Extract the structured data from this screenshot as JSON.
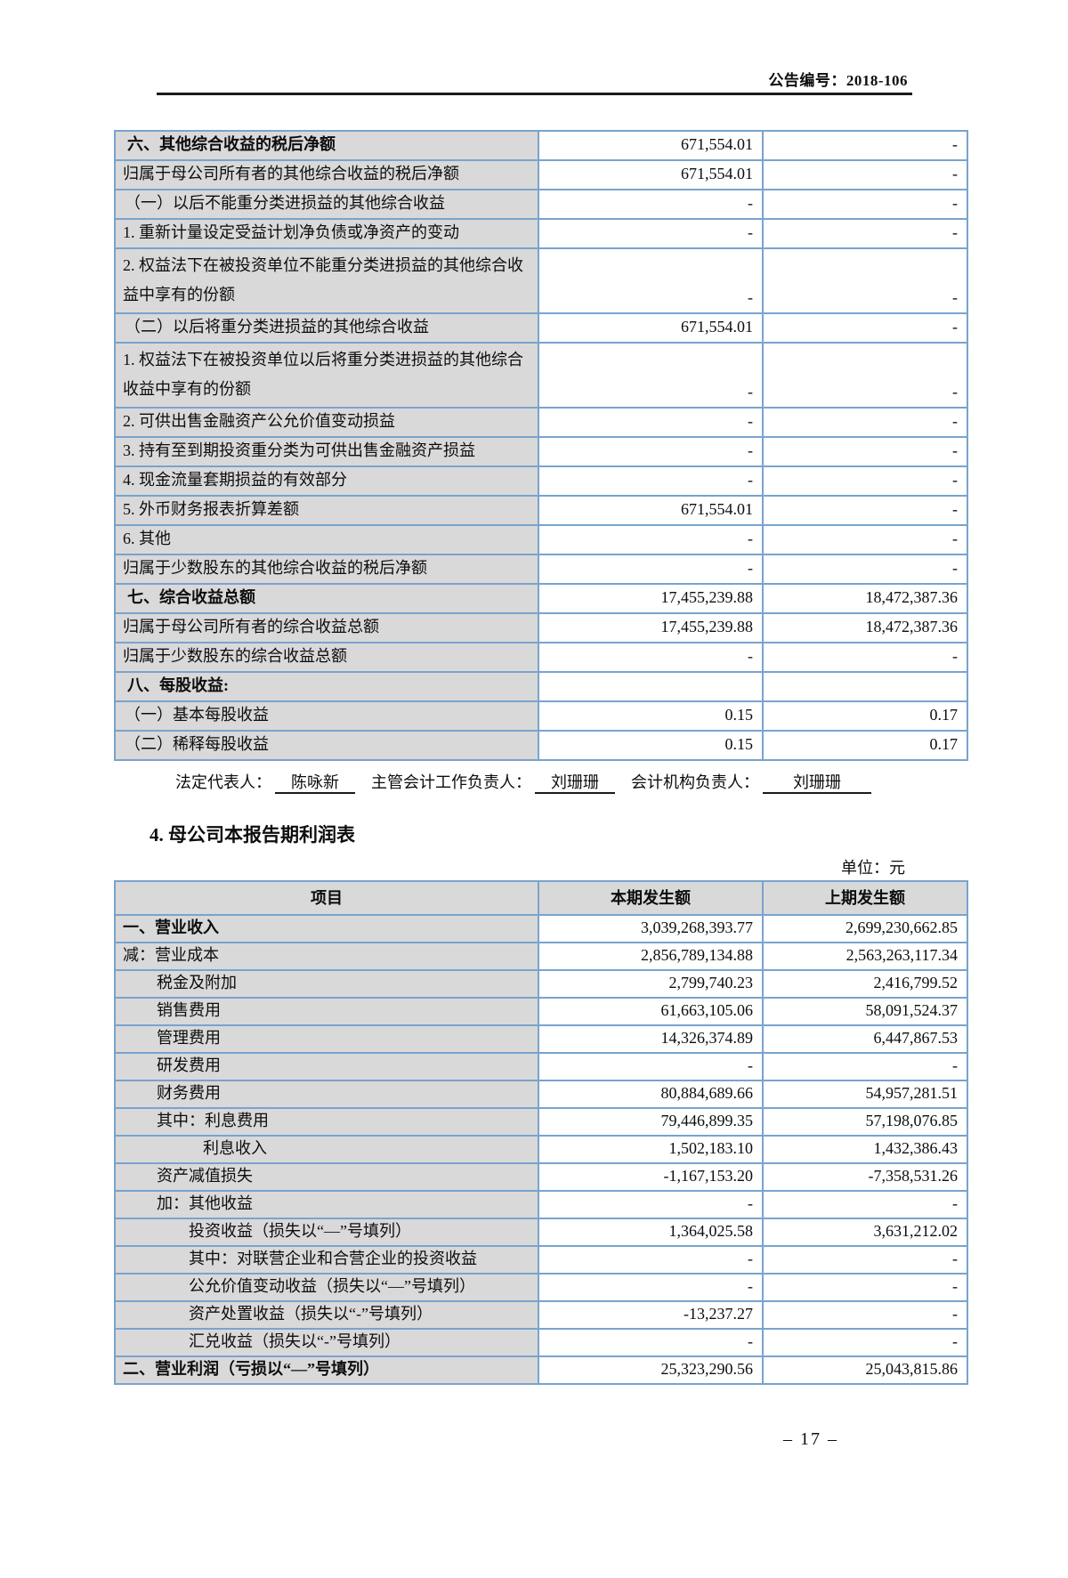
{
  "colors": {
    "table_border": "#79a3ce",
    "label_cell_bg": "#d9d9d9",
    "header_rule": "#1a1a1a"
  },
  "header": {
    "doc_number": "公告编号：2018-106"
  },
  "table1": {
    "rows": [
      {
        "label": "六、其他综合收益的税后净额",
        "current": "671,554.01",
        "prior": "-",
        "bold": true,
        "ind": "sec"
      },
      {
        "label": "归属于母公司所有者的其他综合收益的税后净额",
        "current": "671,554.01",
        "prior": "-",
        "ind": "plain"
      },
      {
        "label": "（一）以后不能重分类进损益的其他综合收益",
        "current": "-",
        "prior": "-",
        "ind": "paren"
      },
      {
        "label": "1. 重新计量设定受益计划净负债或净资产的变动",
        "current": "-",
        "prior": "-",
        "ind": "plain"
      },
      {
        "label": "2. 权益法下在被投资单位不能重分类进损益的其他综合收益中享有的份额",
        "current": "-",
        "prior": "-",
        "ind": "plain",
        "tall": true
      },
      {
        "label": "（二）以后将重分类进损益的其他综合收益",
        "current": "671,554.01",
        "prior": "-",
        "ind": "paren"
      },
      {
        "label": "1. 权益法下在被投资单位以后将重分类进损益的其他综合收益中享有的份额",
        "current": "-",
        "prior": "-",
        "ind": "plain",
        "tall": true
      },
      {
        "label": "2. 可供出售金融资产公允价值变动损益",
        "current": "-",
        "prior": "-",
        "ind": "plain"
      },
      {
        "label": "3. 持有至到期投资重分类为可供出售金融资产损益",
        "current": "-",
        "prior": "-",
        "ind": "plain"
      },
      {
        "label": "4. 现金流量套期损益的有效部分",
        "current": "-",
        "prior": "-",
        "ind": "plain"
      },
      {
        "label": "5. 外币财务报表折算差额",
        "current": "671,554.01",
        "prior": "-",
        "ind": "plain"
      },
      {
        "label": "6. 其他",
        "current": "-",
        "prior": "-",
        "ind": "plain"
      },
      {
        "label": "归属于少数股东的其他综合收益的税后净额",
        "current": "-",
        "prior": "-",
        "ind": "plain"
      },
      {
        "label": "七、综合收益总额",
        "current": "17,455,239.88",
        "prior": "18,472,387.36",
        "bold": true,
        "ind": "sec"
      },
      {
        "label": "归属于母公司所有者的综合收益总额",
        "current": "17,455,239.88",
        "prior": "18,472,387.36",
        "ind": "plain"
      },
      {
        "label": "归属于少数股东的综合收益总额",
        "current": "-",
        "prior": "-",
        "ind": "plain"
      },
      {
        "label": "八、每股收益:",
        "current": "",
        "prior": "",
        "bold": true,
        "ind": "sec"
      },
      {
        "label": "（一）基本每股收益",
        "current": "0.15",
        "prior": "0.17",
        "ind": "paren"
      },
      {
        "label": "（二）稀释每股收益",
        "current": "0.15",
        "prior": "0.17",
        "ind": "paren"
      }
    ]
  },
  "signature": {
    "parts": [
      {
        "label": "法定代表人：",
        "name": "陈咏新"
      },
      {
        "label": "主管会计工作负责人：",
        "name": "刘珊珊"
      },
      {
        "label": "会计机构负责人：",
        "name": "刘珊珊"
      }
    ]
  },
  "section": {
    "title": "4. 母公司本报告期利润表",
    "unit_label": "单位：元"
  },
  "table2": {
    "headers": [
      "项目",
      "本期发生额",
      "上期发生额"
    ],
    "rows": [
      {
        "label": "一、营业收入",
        "current": "3,039,268,393.77",
        "prior": "2,699,230,662.85",
        "bold": true,
        "ind": 0
      },
      {
        "label": "减：营业成本",
        "current": "2,856,789,134.88",
        "prior": "2,563,263,117.34",
        "ind": 0
      },
      {
        "label": "税金及附加",
        "current": "2,799,740.23",
        "prior": "2,416,799.52",
        "ind": 1
      },
      {
        "label": "销售费用",
        "current": "61,663,105.06",
        "prior": "58,091,524.37",
        "ind": 1
      },
      {
        "label": "管理费用",
        "current": "14,326,374.89",
        "prior": "6,447,867.53",
        "ind": 1
      },
      {
        "label": "研发费用",
        "current": "-",
        "prior": "-",
        "ind": 1
      },
      {
        "label": "财务费用",
        "current": "80,884,689.66",
        "prior": "54,957,281.51",
        "ind": 1
      },
      {
        "label": "其中：利息费用",
        "current": "79,446,899.35",
        "prior": "57,198,076.85",
        "ind": 1
      },
      {
        "label": "利息收入",
        "current": "1,502,183.10",
        "prior": "1,432,386.43",
        "ind": 3
      },
      {
        "label": "资产减值损失",
        "current": "-1,167,153.20",
        "prior": "-7,358,531.26",
        "ind": 1
      },
      {
        "label": "加：其他收益",
        "current": "-",
        "prior": "-",
        "ind": 1
      },
      {
        "label": "投资收益（损失以“—”号填列）",
        "current": "1,364,025.58",
        "prior": "3,631,212.02",
        "ind": 2
      },
      {
        "label": "其中：对联营企业和合营企业的投资收益",
        "current": "-",
        "prior": "-",
        "ind": 2
      },
      {
        "label": "公允价值变动收益（损失以“—”号填列）",
        "current": "-",
        "prior": "-",
        "ind": 2
      },
      {
        "label": "资产处置收益（损失以“-”号填列）",
        "current": "-13,237.27",
        "prior": "-",
        "ind": 2
      },
      {
        "label": "汇兑收益（损失以“-”号填列）",
        "current": "-",
        "prior": "-",
        "ind": 2
      },
      {
        "label": "二、营业利润（亏损以“—”号填列）",
        "current": "25,323,290.56",
        "prior": "25,043,815.86",
        "bold": true,
        "ind": 0
      }
    ]
  },
  "footer": {
    "page_number": "–  17  –"
  }
}
